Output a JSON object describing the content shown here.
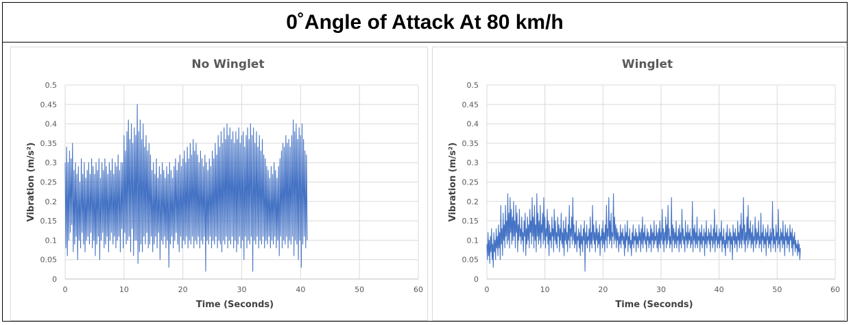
{
  "title": "0˚Angle of Attack At 80 km/h",
  "colors": {
    "series": "#4472c4",
    "grid": "#d9d9d9",
    "axis": "#bfbfbf"
  },
  "chart_data": [
    {
      "type": "line",
      "title": "No Winglet",
      "xlabel": "Time (Seconds)",
      "ylabel": "Vibration (m/s²)",
      "xlim": [
        0,
        60
      ],
      "ylim": [
        0,
        0.5
      ],
      "x_ticks": [
        "0",
        "10",
        "20",
        "30",
        "40",
        "50",
        "60"
      ],
      "y_ticks": [
        "0",
        "0.05",
        "0.1",
        "0.15",
        "0.2",
        "0.25",
        "0.3",
        "0.35",
        "0.4",
        "0.45",
        "0.5"
      ],
      "grid": true,
      "legend": "none",
      "series": [
        {
          "x_start": 0,
          "x_step": 0.125,
          "values": [
            0.3,
            0.08,
            0.34,
            0.06,
            0.3,
            0.1,
            0.33,
            0.12,
            0.31,
            0.14,
            0.35,
            0.07,
            0.28,
            0.09,
            0.3,
            0.11,
            0.27,
            0.05,
            0.29,
            0.1,
            0.25,
            0.08,
            0.31,
            0.12,
            0.27,
            0.09,
            0.3,
            0.07,
            0.26,
            0.1,
            0.28,
            0.11,
            0.3,
            0.09,
            0.27,
            0.12,
            0.31,
            0.08,
            0.29,
            0.1,
            0.27,
            0.06,
            0.3,
            0.09,
            0.28,
            0.11,
            0.31,
            0.05,
            0.26,
            0.1,
            0.3,
            0.12,
            0.28,
            0.08,
            0.31,
            0.09,
            0.29,
            0.11,
            0.27,
            0.07,
            0.3,
            0.1,
            0.28,
            0.12,
            0.31,
            0.09,
            0.27,
            0.11,
            0.3,
            0.08,
            0.29,
            0.1,
            0.32,
            0.11,
            0.28,
            0.07,
            0.3,
            0.13,
            0.3,
            0.08,
            0.37,
            0.12,
            0.33,
            0.09,
            0.38,
            0.1,
            0.41,
            0.11,
            0.36,
            0.07,
            0.4,
            0.13,
            0.35,
            0.06,
            0.39,
            0.1,
            0.37,
            0.1,
            0.45,
            0.04,
            0.38,
            0.07,
            0.41,
            0.09,
            0.36,
            0.07,
            0.4,
            0.11,
            0.34,
            0.09,
            0.37,
            0.12,
            0.33,
            0.08,
            0.35,
            0.09,
            0.32,
            0.11,
            0.28,
            0.07,
            0.3,
            0.09,
            0.27,
            0.11,
            0.31,
            0.08,
            0.26,
            0.12,
            0.29,
            0.05,
            0.27,
            0.1,
            0.3,
            0.09,
            0.28,
            0.11,
            0.26,
            0.08,
            0.29,
            0.1,
            0.27,
            0.03,
            0.3,
            0.09,
            0.28,
            0.11,
            0.26,
            0.08,
            0.29,
            0.1,
            0.31,
            0.12,
            0.28,
            0.09,
            0.3,
            0.07,
            0.32,
            0.11,
            0.29,
            0.08,
            0.31,
            0.1,
            0.33,
            0.09,
            0.3,
            0.11,
            0.34,
            0.08,
            0.31,
            0.1,
            0.35,
            0.09,
            0.32,
            0.11,
            0.36,
            0.08,
            0.33,
            0.1,
            0.35,
            0.09,
            0.32,
            0.11,
            0.3,
            0.08,
            0.33,
            0.1,
            0.31,
            0.09,
            0.29,
            0.11,
            0.32,
            0.02,
            0.3,
            0.1,
            0.28,
            0.09,
            0.31,
            0.11,
            0.29,
            0.08,
            0.33,
            0.1,
            0.31,
            0.09,
            0.35,
            0.11,
            0.32,
            0.08,
            0.37,
            0.1,
            0.34,
            0.09,
            0.38,
            0.07,
            0.35,
            0.1,
            0.39,
            0.09,
            0.36,
            0.11,
            0.4,
            0.08,
            0.37,
            0.1,
            0.39,
            0.09,
            0.36,
            0.11,
            0.38,
            0.08,
            0.35,
            0.1,
            0.38,
            0.07,
            0.36,
            0.09,
            0.39,
            0.11,
            0.35,
            0.08,
            0.37,
            0.1,
            0.38,
            0.05,
            0.34,
            0.11,
            0.37,
            0.08,
            0.39,
            0.1,
            0.36,
            0.09,
            0.4,
            0.11,
            0.37,
            0.02,
            0.39,
            0.1,
            0.35,
            0.09,
            0.38,
            0.11,
            0.34,
            0.08,
            0.37,
            0.1,
            0.33,
            0.09,
            0.36,
            0.11,
            0.32,
            0.08,
            0.31,
            0.1,
            0.29,
            0.09,
            0.28,
            0.11,
            0.26,
            0.08,
            0.29,
            0.1,
            0.27,
            0.09,
            0.3,
            0.11,
            0.28,
            0.08,
            0.26,
            0.1,
            0.29,
            0.06,
            0.31,
            0.11,
            0.33,
            0.08,
            0.35,
            0.1,
            0.34,
            0.09,
            0.37,
            0.11,
            0.35,
            0.08,
            0.36,
            0.1,
            0.34,
            0.09,
            0.37,
            0.11,
            0.41,
            0.06,
            0.38,
            0.1,
            0.4,
            0.09,
            0.36,
            0.05,
            0.39,
            0.1,
            0.37,
            0.03,
            0.4,
            0.09,
            0.36,
            0.11,
            0.33,
            0.08,
            0.32,
            0.1
          ]
        }
      ]
    },
    {
      "type": "line",
      "title": "Winglet",
      "xlabel": "Time (Seconds)",
      "ylabel": "Vibration (m/s²)",
      "xlim": [
        0,
        60
      ],
      "ylim": [
        0,
        0.5
      ],
      "x_ticks": [
        "0",
        "10",
        "20",
        "30",
        "40",
        "50",
        "60"
      ],
      "y_ticks": [
        "0",
        "0.05",
        "0.1",
        "0.15",
        "0.2",
        "0.25",
        "0.3",
        "0.35",
        "0.4",
        "0.45",
        "0.5"
      ],
      "grid": true,
      "legend": "none",
      "series": [
        {
          "x_start": 0,
          "x_step": 0.1,
          "values": [
            0.09,
            0.05,
            0.12,
            0.06,
            0.1,
            0.04,
            0.11,
            0.07,
            0.13,
            0.05,
            0.09,
            0.03,
            0.12,
            0.07,
            0.1,
            0.05,
            0.13,
            0.08,
            0.11,
            0.06,
            0.14,
            0.08,
            0.12,
            0.05,
            0.19,
            0.09,
            0.13,
            0.06,
            0.17,
            0.1,
            0.14,
            0.08,
            0.19,
            0.11,
            0.15,
            0.09,
            0.22,
            0.1,
            0.17,
            0.08,
            0.21,
            0.12,
            0.18,
            0.09,
            0.16,
            0.1,
            0.2,
            0.11,
            0.15,
            0.08,
            0.19,
            0.12,
            0.17,
            0.07,
            0.14,
            0.1,
            0.18,
            0.11,
            0.13,
            0.09,
            0.16,
            0.1,
            0.12,
            0.07,
            0.15,
            0.11,
            0.17,
            0.06,
            0.13,
            0.09,
            0.16,
            0.1,
            0.14,
            0.08,
            0.18,
            0.12,
            0.15,
            0.09,
            0.21,
            0.11,
            0.16,
            0.08,
            0.19,
            0.1,
            0.14,
            0.07,
            0.22,
            0.11,
            0.17,
            0.09,
            0.15,
            0.1,
            0.19,
            0.08,
            0.14,
            0.12,
            0.17,
            0.09,
            0.21,
            0.1,
            0.16,
            0.08,
            0.13,
            0.11,
            0.18,
            0.09,
            0.15,
            0.06,
            0.14,
            0.1,
            0.12,
            0.08,
            0.16,
            0.11,
            0.13,
            0.07,
            0.18,
            0.1,
            0.15,
            0.09,
            0.12,
            0.08,
            0.16,
            0.11,
            0.14,
            0.07,
            0.13,
            0.1,
            0.17,
            0.09,
            0.12,
            0.08,
            0.15,
            0.06,
            0.13,
            0.1,
            0.16,
            0.09,
            0.12,
            0.07,
            0.14,
            0.1,
            0.19,
            0.08,
            0.13,
            0.11,
            0.16,
            0.09,
            0.21,
            0.1,
            0.14,
            0.08,
            0.12,
            0.09,
            0.15,
            0.07,
            0.11,
            0.1,
            0.13,
            0.08,
            0.12,
            0.06,
            0.14,
            0.09,
            0.11,
            0.07,
            0.13,
            0.1,
            0.15,
            0.02,
            0.12,
            0.09,
            0.14,
            0.08,
            0.11,
            0.1,
            0.13,
            0.07,
            0.16,
            0.09,
            0.12,
            0.08,
            0.19,
            0.1,
            0.14,
            0.09,
            0.12,
            0.07,
            0.15,
            0.1,
            0.13,
            0.08,
            0.12,
            0.09,
            0.14,
            0.06,
            0.11,
            0.1,
            0.13,
            0.08,
            0.15,
            0.09,
            0.12,
            0.07,
            0.14,
            0.1,
            0.19,
            0.08,
            0.13,
            0.11,
            0.21,
            0.09,
            0.15,
            0.1,
            0.17,
            0.08,
            0.12,
            0.11,
            0.22,
            0.09,
            0.16,
            0.1,
            0.14,
            0.08,
            0.13,
            0.1,
            0.12,
            0.07,
            0.11,
            0.09,
            0.14,
            0.08,
            0.12,
            0.1,
            0.13,
            0.09,
            0.11,
            0.06,
            0.14,
            0.08,
            0.12,
            0.1,
            0.15,
            0.07,
            0.11,
            0.09,
            0.13,
            0.08,
            0.1,
            0.06,
            0.12,
            0.09,
            0.14,
            0.08,
            0.11,
            0.1,
            0.13,
            0.07,
            0.12,
            0.09,
            0.11,
            0.08,
            0.14,
            0.1,
            0.12,
            0.07,
            0.13,
            0.09,
            0.16,
            0.08,
            0.12,
            0.1,
            0.14,
            0.09,
            0.11,
            0.07,
            0.13,
            0.1,
            0.12,
            0.08,
            0.11,
            0.09,
            0.14,
            0.07,
            0.13,
            0.1,
            0.12,
            0.08,
            0.15,
            0.09,
            0.11,
            0.1,
            0.14,
            0.08,
            0.12,
            0.07,
            0.13,
            0.09,
            0.15,
            0.08,
            0.12,
            0.1,
            0.18,
            0.09,
            0.13,
            0.07,
            0.12,
            0.1,
            0.16,
            0.08,
            0.14,
            0.09,
            0.19,
            0.1,
            0.13,
            0.08,
            0.11,
            0.09,
            0.21,
            0.07,
            0.14,
            0.1,
            0.13,
            0.08,
            0.12,
            0.09,
            0.15,
            0.08,
            0.11,
            0.1,
            0.13,
            0.07,
            0.14,
            0.09,
            0.12,
            0.08,
            0.18,
            0.1,
            0.13,
            0.09,
            0.11,
            0.07,
            0.15,
            0.1,
            0.12,
            0.08,
            0.14,
            0.09,
            0.12,
            0.1,
            0.13,
            0.08,
            0.11,
            0.09,
            0.2,
            0.07,
            0.13,
            0.1,
            0.14,
            0.08,
            0.12,
            0.09,
            0.16,
            0.08,
            0.11,
            0.1,
            0.13,
            0.07,
            0.12,
            0.09,
            0.14,
            0.08,
            0.11,
            0.1,
            0.13,
            0.06,
            0.12,
            0.09,
            0.15,
            0.08,
            0.11,
            0.1,
            0.13,
            0.09,
            0.12,
            0.07,
            0.14,
            0.1,
            0.11,
            0.08,
            0.13,
            0.09,
            0.18,
            0.07,
            0.12,
            0.1,
            0.14,
            0.08,
            0.11,
            0.09,
            0.13,
            0.08,
            0.12,
            0.1,
            0.15,
            0.07,
            0.11,
            0.09,
            0.13,
            0.08,
            0.1,
            0.06,
            0.12,
            0.09,
            0.14,
            0.08,
            0.11,
            0.1,
            0.13,
            0.07,
            0.12,
            0.09,
            0.11,
            0.05,
            0.14,
            0.1,
            0.12,
            0.08,
            0.13,
            0.09,
            0.11,
            0.07,
            0.15,
            0.1,
            0.12,
            0.08,
            0.14,
            0.09,
            0.17,
            0.08,
            0.13,
            0.1,
            0.21,
            0.09,
            0.14,
            0.07,
            0.12,
            0.1,
            0.16,
            0.08,
            0.19,
            0.09,
            0.13,
            0.1,
            0.15,
            0.08,
            0.12,
            0.09,
            0.14,
            0.07,
            0.11,
            0.1,
            0.16,
            0.08,
            0.13,
            0.09,
            0.12,
            0.1,
            0.15,
            0.08,
            0.11,
            0.09,
            0.17,
            0.07,
            0.12,
            0.1,
            0.14,
            0.08,
            0.11,
            0.09,
            0.13,
            0.06,
            0.12,
            0.1,
            0.14,
            0.08,
            0.11,
            0.09,
            0.13,
            0.07,
            0.12,
            0.1,
            0.2,
            0.08,
            0.13,
            0.09,
            0.11,
            0.07,
            0.14,
            0.1,
            0.12,
            0.08,
            0.18,
            0.09,
            0.11,
            0.07,
            0.13,
            0.1,
            0.12,
            0.08,
            0.15,
            0.09,
            0.11,
            0.06,
            0.14,
            0.1,
            0.12,
            0.08,
            0.13,
            0.09,
            0.11,
            0.07,
            0.14,
            0.1,
            0.12,
            0.08,
            0.13,
            0.06,
            0.11,
            0.09,
            0.12,
            0.07,
            0.1,
            0.08,
            0.09,
            0.06,
            0.1,
            0.07,
            0.09,
            0.05,
            0.08
          ]
        }
      ]
    }
  ]
}
